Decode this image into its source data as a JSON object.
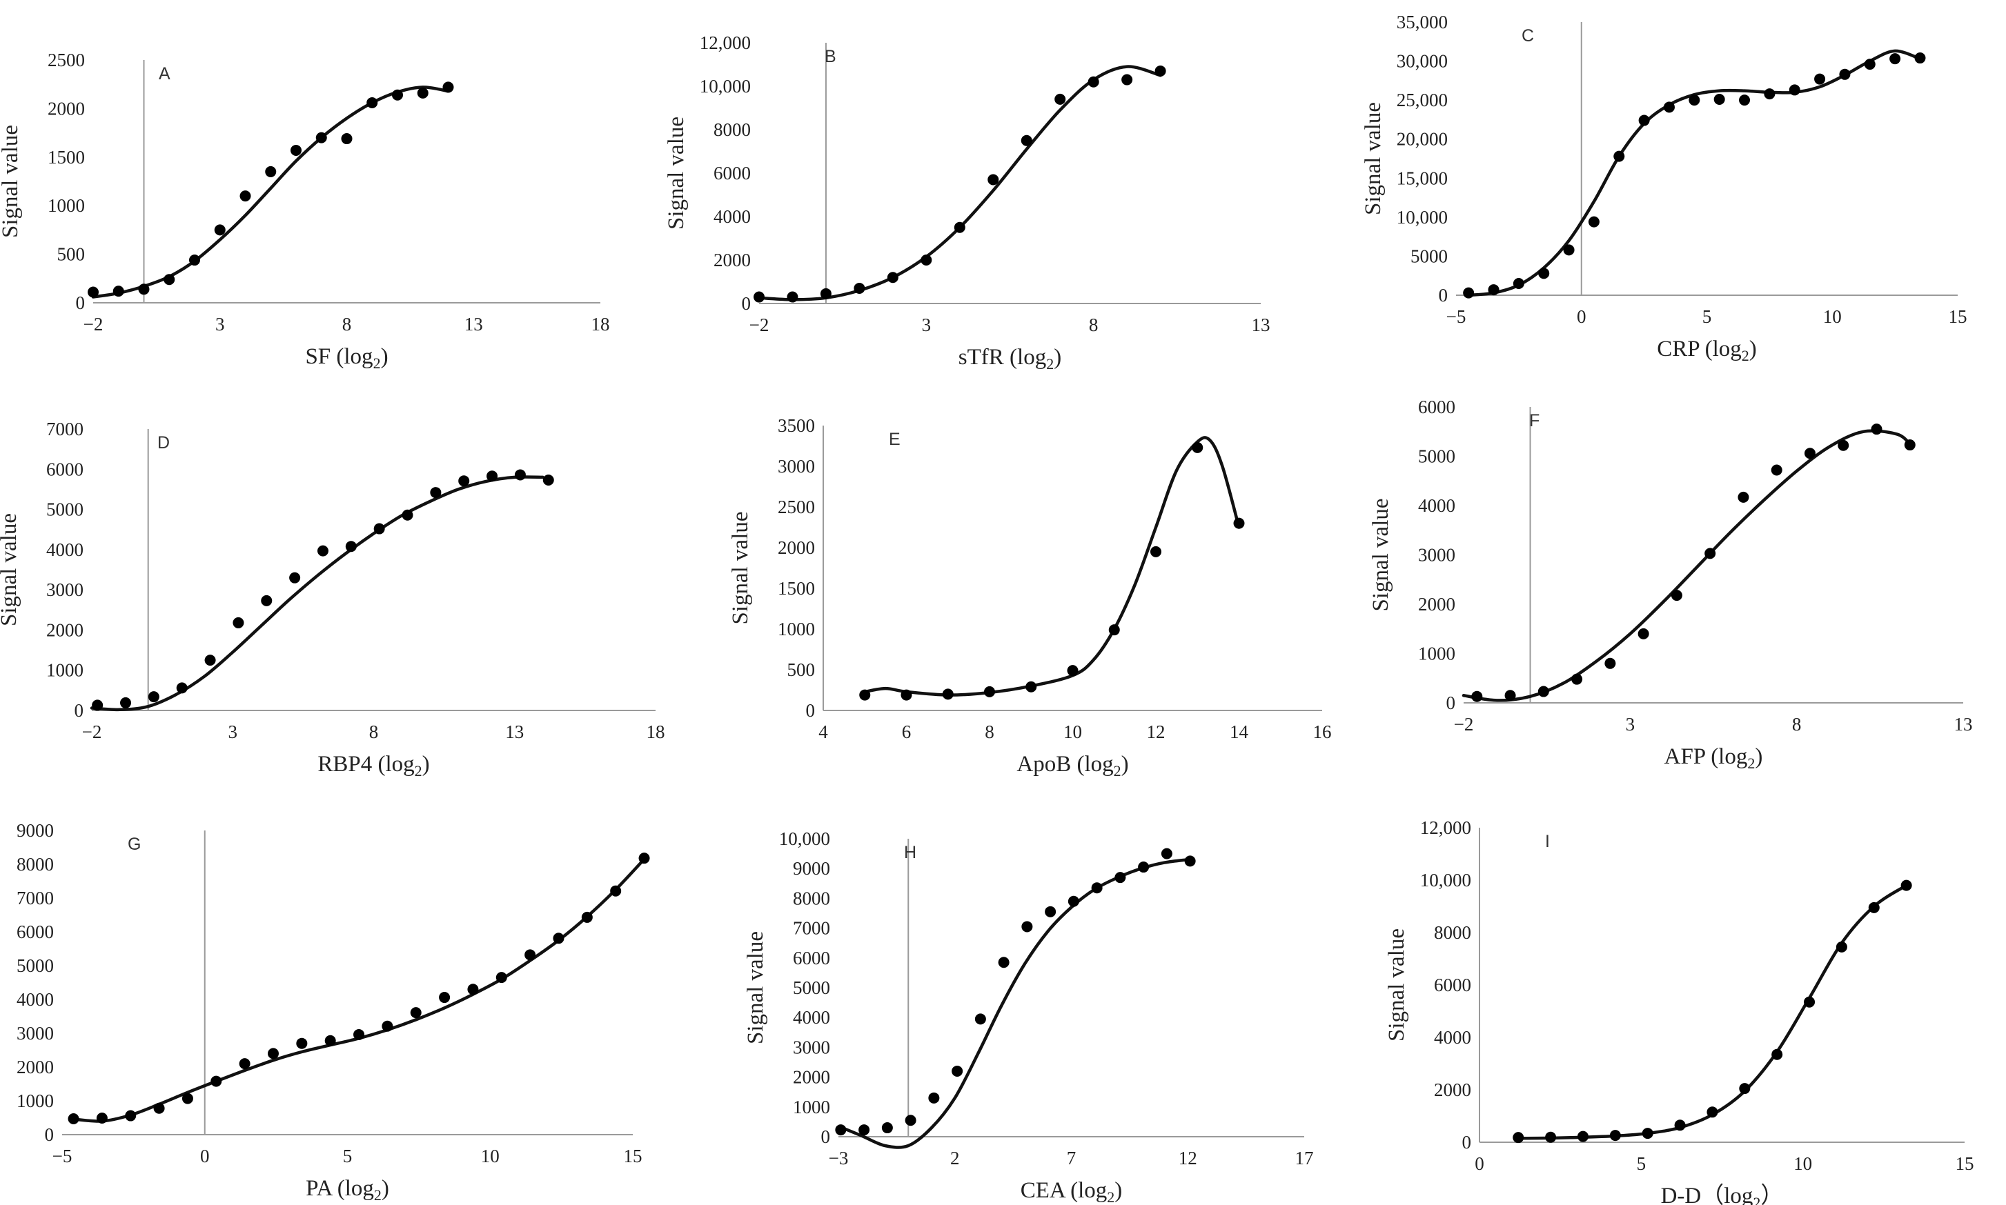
{
  "figure": {
    "y_label": "Signal value"
  },
  "chart_data": [
    {
      "id": "A",
      "type": "scatter",
      "panel_label": "A",
      "xlabel": "SF (log",
      "xlabel_sub": "2",
      "xlabel_tail": ")",
      "ylabel": "Signal value",
      "xlim": [
        -2,
        18
      ],
      "xticks": [
        -2,
        3,
        8,
        13,
        18
      ],
      "ylim": [
        0,
        2500
      ],
      "yticks": [
        0,
        500,
        1000,
        1500,
        2000,
        2500
      ],
      "ytick_labels": [
        "0",
        "500",
        "1000",
        "1500",
        "2000",
        "2500"
      ],
      "x": [
        -2,
        -1,
        0,
        1,
        2,
        3,
        4,
        5,
        6,
        7,
        8,
        9,
        10,
        11,
        12
      ],
      "y": [
        110,
        120,
        140,
        240,
        440,
        750,
        1100,
        1350,
        1570,
        1700,
        1690,
        2060,
        2140,
        2160,
        2220
      ],
      "fit_x": [
        -2,
        -1,
        0,
        1,
        2,
        3,
        4,
        5,
        6,
        7,
        8,
        9,
        10,
        11,
        12
      ],
      "fit_y": [
        60,
        100,
        170,
        270,
        430,
        650,
        900,
        1180,
        1460,
        1700,
        1900,
        2060,
        2170,
        2220,
        2180
      ]
    },
    {
      "id": "B",
      "type": "scatter",
      "panel_label": "B",
      "xlabel": "sTfR (log",
      "xlabel_sub": "2",
      "xlabel_tail": ")",
      "ylabel": "Signal value",
      "xlim": [
        -2,
        13
      ],
      "xticks": [
        -2,
        3,
        8,
        13
      ],
      "ylim": [
        0,
        12000
      ],
      "yticks": [
        0,
        2000,
        4000,
        6000,
        8000,
        10000,
        12000
      ],
      "ytick_labels": [
        "0",
        "2000",
        "4000",
        "6000",
        "8000",
        "10,000",
        "12,000"
      ],
      "x": [
        -2,
        -1,
        0,
        1,
        2,
        3,
        4,
        5,
        6,
        7,
        8,
        9,
        10
      ],
      "y": [
        300,
        300,
        450,
        700,
        1200,
        2000,
        3500,
        5700,
        7500,
        9400,
        10200,
        10300,
        10700
      ],
      "fit_x": [
        -2,
        -1,
        0,
        1,
        2,
        3,
        4,
        5,
        6,
        7,
        8,
        9,
        10
      ],
      "fit_y": [
        260,
        180,
        260,
        600,
        1200,
        2150,
        3500,
        5200,
        7100,
        8900,
        10300,
        10900,
        10500
      ]
    },
    {
      "id": "C",
      "type": "scatter",
      "panel_label": "C",
      "xlabel": "CRP (log",
      "xlabel_sub": "2",
      "xlabel_tail": ")",
      "ylabel": "Signal value",
      "xlim": [
        -5,
        15
      ],
      "xticks": [
        -5,
        0,
        5,
        10,
        15
      ],
      "ylim": [
        0,
        35000
      ],
      "yticks": [
        0,
        5000,
        10000,
        15000,
        20000,
        25000,
        30000,
        35000
      ],
      "ytick_labels": [
        "0",
        "5000",
        "10,000",
        "15,000",
        "20,000",
        "25,000",
        "30,000",
        "35,000"
      ],
      "x": [
        -4.5,
        -3.5,
        -2.5,
        -1.5,
        -0.5,
        0.5,
        1.5,
        2.5,
        3.5,
        4.5,
        5.5,
        6.5,
        7.5,
        8.5,
        9.5,
        10.5,
        11.5,
        12.5,
        13.5
      ],
      "y": [
        300,
        700,
        1500,
        2800,
        5800,
        9400,
        17800,
        22400,
        24100,
        25000,
        25100,
        25000,
        25800,
        26300,
        27700,
        28300,
        29600,
        30300,
        30400
      ],
      "fit_x": [
        -4.5,
        -3.5,
        -2.5,
        -1.5,
        -0.5,
        0.5,
        1.5,
        2.5,
        3.5,
        4.5,
        5.5,
        6.5,
        7.5,
        8.5,
        9.5,
        10.5,
        11.5,
        12.5,
        13.5
      ],
      "fit_y": [
        0,
        300,
        1300,
        3500,
        7000,
        12000,
        17800,
        22000,
        24400,
        25700,
        26200,
        26200,
        26000,
        26000,
        26700,
        28200,
        30000,
        31300,
        30300
      ]
    },
    {
      "id": "D",
      "type": "scatter",
      "panel_label": "D",
      "xlabel": "RBP4 (log",
      "xlabel_sub": "2",
      "xlabel_tail": ")",
      "ylabel": "Signal value",
      "xlim": [
        -2,
        18
      ],
      "xticks": [
        -2,
        3,
        8,
        13,
        18
      ],
      "ylim": [
        0,
        7000
      ],
      "yticks": [
        0,
        1000,
        2000,
        3000,
        4000,
        5000,
        6000,
        7000
      ],
      "ytick_labels": [
        "0",
        "1000",
        "2000",
        "3000",
        "4000",
        "5000",
        "6000",
        "7000"
      ],
      "x": [
        -1.8,
        -0.8,
        0.2,
        1.2,
        2.2,
        3.2,
        4.2,
        5.2,
        6.2,
        7.2,
        8.2,
        9.2,
        10.2,
        11.2,
        12.2,
        13.2,
        14.2
      ],
      "y": [
        130,
        190,
        340,
        560,
        1250,
        2180,
        2730,
        3300,
        3970,
        4080,
        4520,
        4860,
        5420,
        5710,
        5830,
        5860,
        5730
      ],
      "fit_x": [
        -2,
        -1,
        0,
        1,
        2,
        3,
        4,
        5,
        6,
        7,
        8,
        9,
        10,
        11,
        12,
        13,
        14
      ],
      "fit_y": [
        60,
        20,
        100,
        400,
        850,
        1450,
        2100,
        2750,
        3350,
        3900,
        4400,
        4850,
        5200,
        5500,
        5700,
        5800,
        5800
      ]
    },
    {
      "id": "E",
      "type": "scatter",
      "panel_label": "E",
      "xlabel": "ApoB (log",
      "xlabel_sub": "2",
      "xlabel_tail": ")",
      "ylabel": "Signal value",
      "xlim": [
        4,
        16
      ],
      "xticks": [
        4,
        6,
        8,
        10,
        12,
        14,
        16
      ],
      "ylim": [
        0,
        3500
      ],
      "yticks": [
        0,
        500,
        1000,
        1500,
        2000,
        2500,
        3000,
        3500
      ],
      "ytick_labels": [
        "0",
        "500",
        "1000",
        "1500",
        "2000",
        "2500",
        "3000",
        "3500"
      ],
      "x": [
        5,
        6,
        7,
        8,
        9,
        10,
        11,
        12,
        13,
        14
      ],
      "y": [
        190,
        190,
        200,
        230,
        290,
        490,
        990,
        1950,
        3230,
        2300
      ],
      "fit_x": [
        5,
        5.5,
        6,
        7,
        8,
        9,
        10,
        10.5,
        11,
        11.5,
        12,
        12.5,
        13,
        13.3,
        13.6,
        14
      ],
      "fit_y": [
        230,
        270,
        230,
        190,
        220,
        300,
        430,
        620,
        1000,
        1550,
        2250,
        2950,
        3300,
        3320,
        3000,
        2250
      ]
    },
    {
      "id": "F",
      "type": "scatter",
      "panel_label": "F",
      "xlabel": "AFP (log",
      "xlabel_sub": "2",
      "xlabel_tail": ")",
      "ylabel": "Signal value",
      "xlim": [
        -2,
        13
      ],
      "xticks": [
        -2,
        3,
        8,
        13
      ],
      "ylim": [
        0,
        6000
      ],
      "yticks": [
        0,
        1000,
        2000,
        3000,
        4000,
        5000,
        6000
      ],
      "ytick_labels": [
        "0",
        "1000",
        "2000",
        "3000",
        "4000",
        "5000",
        "6000"
      ],
      "x": [
        -1.6,
        -0.6,
        0.4,
        1.4,
        2.4,
        3.4,
        4.4,
        5.4,
        6.4,
        7.4,
        8.4,
        9.4,
        10.4,
        11.4
      ],
      "y": [
        130,
        150,
        230,
        480,
        800,
        1400,
        2180,
        3030,
        4170,
        4720,
        5060,
        5220,
        5550,
        5230
      ],
      "fit_x": [
        -2,
        -1,
        0,
        1,
        2,
        3,
        4,
        5,
        6,
        7,
        8,
        9,
        10,
        11,
        11.4
      ],
      "fit_y": [
        150,
        50,
        130,
        400,
        850,
        1400,
        2050,
        2750,
        3450,
        4100,
        4700,
        5200,
        5500,
        5450,
        5250
      ]
    },
    {
      "id": "G",
      "type": "scatter",
      "panel_label": "G",
      "xlabel": "PA (log",
      "xlabel_sub": "2",
      "xlabel_tail": ")",
      "ylabel": "Signal value",
      "xlim": [
        -5,
        15
      ],
      "xticks": [
        -5,
        0,
        5,
        10,
        15
      ],
      "ylim": [
        0,
        9000
      ],
      "yticks": [
        0,
        1000,
        2000,
        3000,
        4000,
        5000,
        6000,
        7000,
        8000,
        9000
      ],
      "ytick_labels": [
        "0",
        "1000",
        "2000",
        "3000",
        "4000",
        "5000",
        "6000",
        "7000",
        "8000",
        "9000"
      ],
      "x": [
        -4.6,
        -3.6,
        -2.6,
        -1.6,
        -0.6,
        0.4,
        1.4,
        2.4,
        3.4,
        4.4,
        5.4,
        6.4,
        7.4,
        8.4,
        9.4,
        10.4,
        11.4,
        12.4,
        13.4,
        14.4,
        15.4
      ],
      "y": [
        470,
        490,
        560,
        780,
        1070,
        1580,
        2100,
        2400,
        2700,
        2780,
        2960,
        3210,
        3610,
        4060,
        4300,
        4650,
        5320,
        5810,
        6430,
        7210,
        8180
      ],
      "fit_x": [
        -4.6,
        -3.6,
        -2.6,
        -1.6,
        -0.6,
        0.4,
        1.4,
        2.4,
        3.4,
        4.4,
        5.4,
        6.4,
        7.4,
        8.4,
        9.4,
        10.4,
        11.4,
        12.4,
        13.4,
        14.4,
        15.4
      ],
      "fit_y": [
        460,
        400,
        580,
        900,
        1250,
        1580,
        1900,
        2200,
        2450,
        2650,
        2850,
        3100,
        3400,
        3750,
        4150,
        4600,
        5150,
        5750,
        6450,
        7250,
        8150
      ]
    },
    {
      "id": "H",
      "type": "scatter",
      "panel_label": "H",
      "xlabel": "CEA (log",
      "xlabel_sub": "2",
      "xlabel_tail": ")",
      "ylabel": "Signal value",
      "xlim": [
        -3,
        17
      ],
      "xticks": [
        -3,
        2,
        7,
        12,
        17
      ],
      "ylim": [
        0,
        10000
      ],
      "yticks": [
        0,
        1000,
        2000,
        3000,
        4000,
        5000,
        6000,
        7000,
        8000,
        9000,
        10000
      ],
      "ytick_labels": [
        "0",
        "1000",
        "2000",
        "3000",
        "4000",
        "5000",
        "6000",
        "7000",
        "8000",
        "9000",
        "10,000"
      ],
      "x": [
        -2.9,
        -1.9,
        -0.9,
        0.1,
        1.1,
        2.1,
        3.1,
        4.1,
        5.1,
        6.1,
        7.1,
        8.1,
        9.1,
        10.1,
        11.1,
        12.1
      ],
      "y": [
        230,
        230,
        300,
        550,
        1300,
        2200,
        3950,
        5850,
        7050,
        7550,
        7900,
        8350,
        8700,
        9050,
        9500,
        9250
      ],
      "fit_x": [
        -2.9,
        -2,
        -1,
        0,
        1,
        2,
        3,
        4,
        5,
        6,
        7,
        8,
        9,
        10,
        11,
        12
      ],
      "fit_y": [
        320,
        30,
        -300,
        -300,
        300,
        1300,
        2800,
        4400,
        5800,
        6900,
        7700,
        8300,
        8700,
        9000,
        9200,
        9300
      ]
    },
    {
      "id": "I",
      "type": "scatter",
      "panel_label": "I",
      "xlabel": "D-D（log",
      "xlabel_sub": "2",
      "xlabel_tail": "）",
      "ylabel": "Signal value",
      "xlim": [
        0,
        15
      ],
      "xticks": [
        0,
        5,
        10,
        15
      ],
      "ylim": [
        0,
        12000
      ],
      "yticks": [
        0,
        2000,
        4000,
        6000,
        8000,
        10000,
        12000
      ],
      "ytick_labels": [
        "0",
        "2000",
        "4000",
        "6000",
        "8000",
        "10,000",
        "12,000"
      ],
      "x": [
        1.2,
        2.2,
        3.2,
        4.2,
        5.2,
        6.2,
        7.2,
        8.2,
        9.2,
        10.2,
        11.2,
        12.2,
        13.2
      ],
      "y": [
        180,
        190,
        220,
        260,
        340,
        650,
        1150,
        2050,
        3350,
        5350,
        7450,
        8950,
        9800
      ],
      "fit_x": [
        1.2,
        2.2,
        3.2,
        4.2,
        5.2,
        6.2,
        7.2,
        8.2,
        9.2,
        10.2,
        11.2,
        12.2,
        13.2
      ],
      "fit_y": [
        150,
        160,
        190,
        240,
        340,
        560,
        1050,
        1950,
        3450,
        5500,
        7600,
        9000,
        9800
      ]
    }
  ]
}
